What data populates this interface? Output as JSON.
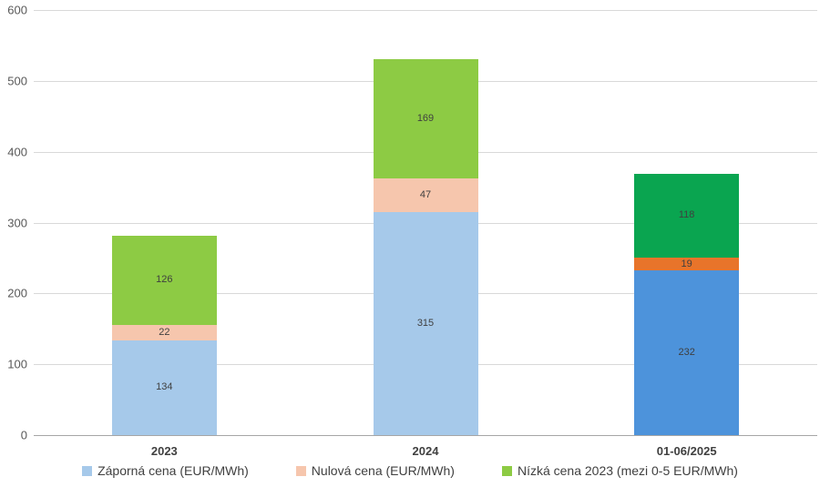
{
  "chart_data": {
    "type": "bar",
    "stacked": true,
    "title": "",
    "xlabel": "",
    "ylabel": "",
    "categories": [
      "2023",
      "2024",
      "01-06/2025"
    ],
    "series": [
      {
        "name": "Záporná cena (EUR/MWh)",
        "values": [
          134,
          315,
          232
        ],
        "colors": [
          "#A6C9EA",
          "#A6C9EA",
          "#4D93DB"
        ],
        "legend_color": "#A6C9EA"
      },
      {
        "name": "Nulová cena (EUR/MWh)",
        "values": [
          22,
          47,
          19
        ],
        "colors": [
          "#F6C6AD",
          "#F6C6AD",
          "#E8742A"
        ],
        "legend_color": "#F6C6AD"
      },
      {
        "name": "Nízká cena 2023 (mezi 0-5 EUR/MWh)",
        "values": [
          126,
          169,
          118
        ],
        "colors": [
          "#8DCB44",
          "#8DCB44",
          "#0AA550"
        ],
        "legend_color": "#8DCB44"
      }
    ],
    "totals": [
      282,
      531,
      369
    ],
    "y_ticks": [
      0,
      100,
      200,
      300,
      400,
      500,
      600
    ],
    "ylim": [
      0,
      600
    ],
    "grid": true,
    "legend_position": "bottom",
    "colors": {
      "gridline": "#D9D9D9",
      "axis_line": "#A6A6A6",
      "tick_label": "#595959",
      "category_label": "#404040",
      "data_label": "#3F3F3F",
      "background": "#FFFFFF"
    }
  }
}
